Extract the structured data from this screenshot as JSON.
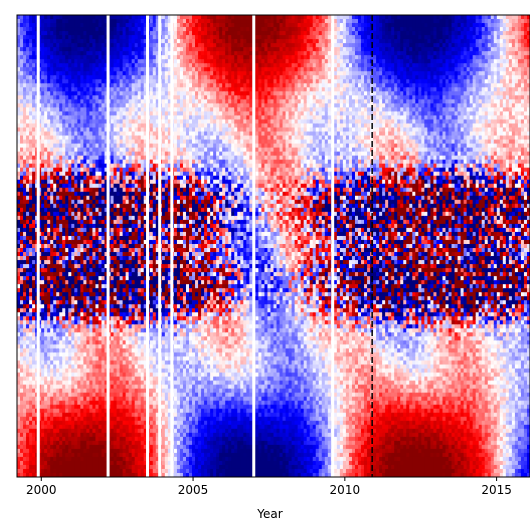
{
  "chart_data": {
    "type": "heatmap",
    "title": "",
    "xlabel": "Year",
    "ylabel": "",
    "xlim": [
      1999.2,
      2016.1
    ],
    "x_ticks": [
      {
        "value": 2000,
        "label": "2000"
      },
      {
        "value": 2005,
        "label": "2005"
      },
      {
        "value": 2010,
        "label": "2010"
      },
      {
        "value": 2015,
        "label": "2015"
      }
    ],
    "y_ticks": [],
    "colormap": "seismic",
    "colors": {
      "negative": "#0000cc",
      "neutral": "#ffffff",
      "positive": "#dd0000"
    },
    "data_gaps": [
      1999.9,
      2002.2,
      2003.5,
      2003.9,
      2004.3,
      2007.0,
      2009.6
    ],
    "reference_lines": [
      {
        "x": 2010.9,
        "style": "dashed",
        "color": "#000000"
      }
    ],
    "grid": false,
    "legend": "none"
  }
}
